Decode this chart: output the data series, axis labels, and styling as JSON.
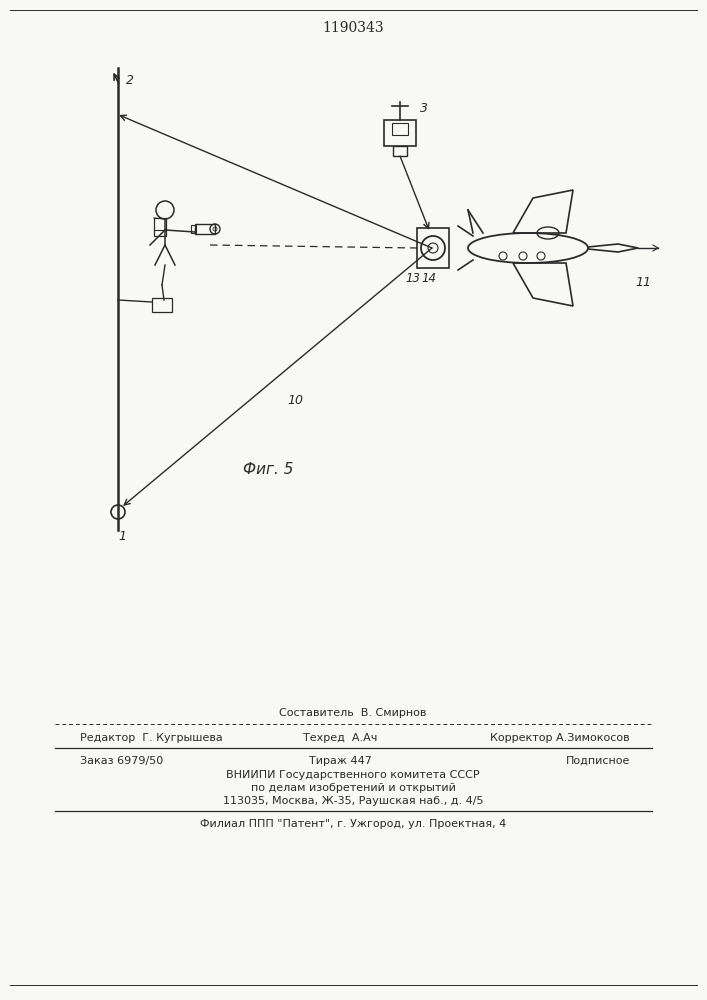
{
  "patent_number": "1190343",
  "fig_label": "Фиг. 5",
  "bg_color": "#f8f8f5",
  "line_color": "#2a2a2a",
  "label_1": "1",
  "label_2": "2",
  "label_3": "3",
  "label_10": "10",
  "label_11": "11",
  "label_13": "13",
  "label_14": "14",
  "footer_sestavitel": "Составитель  В. Смирнов",
  "footer_editor": "Редактор  Г. Кугрышева",
  "footer_tehred": "Техред  А.Ач",
  "footer_korrektor": "Корректор А.Зимокосов",
  "footer_zakaz": "Заказ 6979/50",
  "footer_tirazh": "Тираж 447",
  "footer_podpisnoe": "Подписное",
  "footer_vniipи": "ВНИИПИ Государственного комитета СССР",
  "footer_dela": "по делам изобретений и открытий",
  "footer_address": "113035, Москва, Ж-35, Раушская наб., д. 4/5",
  "footer_filial": "Филиал ППП \"Патент\", г. Ужгород, ул. Проектная, 4"
}
